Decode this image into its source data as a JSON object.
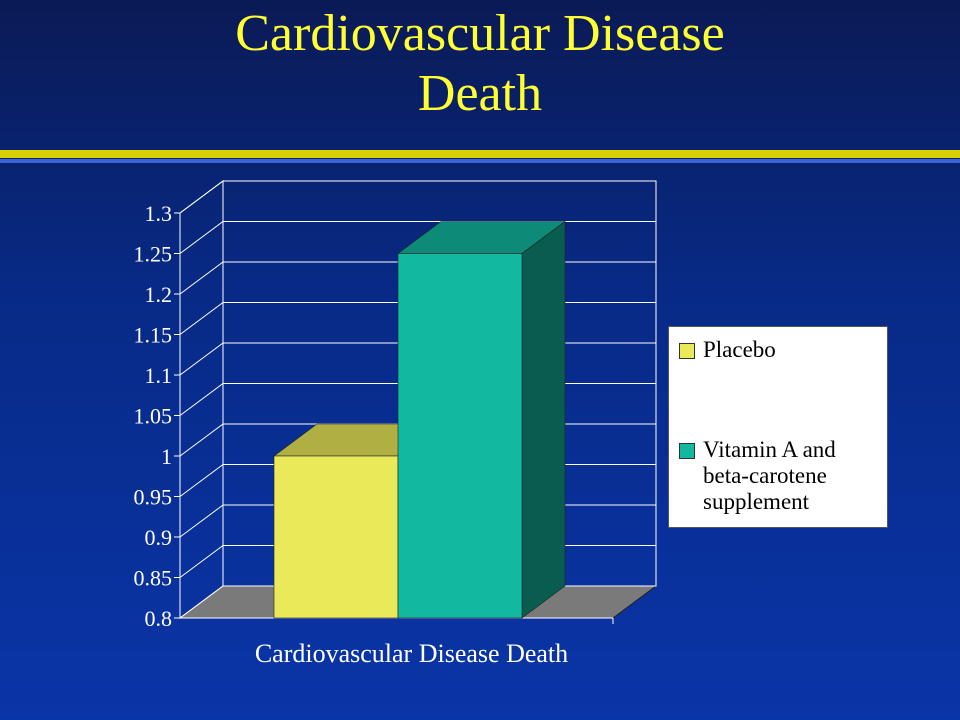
{
  "slide": {
    "title_line1": "Cardiovascular Disease",
    "title_line2": "Death"
  },
  "colors": {
    "title": "#ffff33",
    "placebo": "#e9e95a",
    "supplement": "#12b8a0",
    "floor": "#7a7a7a"
  },
  "chart_data": {
    "type": "bar",
    "categories": [
      "Cardiovascular Disease Death"
    ],
    "xlabel": "Cardiovascular Disease Death",
    "ylim": [
      0.8,
      1.3
    ],
    "yticks": [
      "0.8",
      "0.85",
      "0.9",
      "0.95",
      "1",
      "1.05",
      "1.1",
      "1.15",
      "1.2",
      "1.25",
      "1.3"
    ],
    "grid": true,
    "legend_position": "right",
    "series": [
      {
        "name": "Placebo",
        "values": [
          1.0
        ]
      },
      {
        "name": "Vitamin A and beta-carotene supplement",
        "values": [
          1.25
        ]
      }
    ]
  },
  "legend": {
    "items": [
      {
        "label": "Placebo"
      },
      {
        "label": "Vitamin A and\nbeta-carotene\nsupplement"
      }
    ]
  }
}
